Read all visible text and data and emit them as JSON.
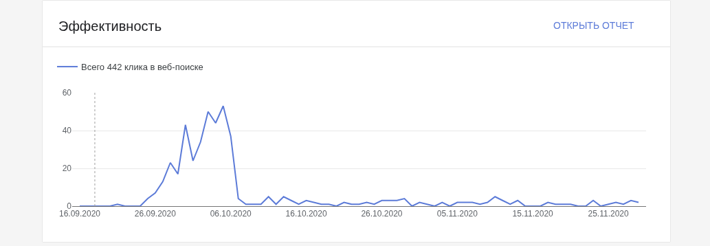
{
  "chart_data": {
    "type": "line",
    "title": "Эффективность",
    "annotations": [
      "ОТКРЫТЬ ОТЧЕТ"
    ],
    "x": [
      "2020-09-16",
      "2020-09-17",
      "2020-09-18",
      "2020-09-19",
      "2020-09-20",
      "2020-09-21",
      "2020-09-22",
      "2020-09-23",
      "2020-09-24",
      "2020-09-25",
      "2020-09-26",
      "2020-09-27",
      "2020-09-28",
      "2020-09-29",
      "2020-09-30",
      "2020-10-01",
      "2020-10-02",
      "2020-10-03",
      "2020-10-04",
      "2020-10-05",
      "2020-10-06",
      "2020-10-07",
      "2020-10-08",
      "2020-10-09",
      "2020-10-10",
      "2020-10-11",
      "2020-10-12",
      "2020-10-13",
      "2020-10-14",
      "2020-10-15",
      "2020-10-16",
      "2020-10-17",
      "2020-10-18",
      "2020-10-19",
      "2020-10-20",
      "2020-10-21",
      "2020-10-22",
      "2020-10-23",
      "2020-10-24",
      "2020-10-25",
      "2020-10-26",
      "2020-10-27",
      "2020-10-28",
      "2020-10-29",
      "2020-10-30",
      "2020-10-31",
      "2020-11-01",
      "2020-11-02",
      "2020-11-03",
      "2020-11-04",
      "2020-11-05",
      "2020-11-06",
      "2020-11-07",
      "2020-11-08",
      "2020-11-09",
      "2020-11-10",
      "2020-11-11",
      "2020-11-12",
      "2020-11-13",
      "2020-11-14",
      "2020-11-15",
      "2020-11-16",
      "2020-11-17",
      "2020-11-18",
      "2020-11-19",
      "2020-11-20",
      "2020-11-21",
      "2020-11-22",
      "2020-11-23",
      "2020-11-24",
      "2020-11-25",
      "2020-11-26",
      "2020-11-27",
      "2020-11-28",
      "2020-11-29"
    ],
    "series": [
      {
        "name": "Всего 442 клика в веб-поиске",
        "color": "#5c7bd8",
        "values": [
          0,
          0,
          0,
          0,
          0,
          1,
          0,
          0,
          0,
          4,
          7,
          13,
          23,
          17,
          43,
          24,
          34,
          50,
          44,
          53,
          37,
          4,
          1,
          1,
          1,
          5,
          1,
          5,
          3,
          1,
          3,
          2,
          1,
          1,
          0,
          2,
          1,
          1,
          2,
          1,
          3,
          3,
          3,
          4,
          0,
          2,
          1,
          0,
          2,
          0,
          2,
          2,
          2,
          1,
          2,
          5,
          3,
          1,
          3,
          0,
          0,
          0,
          2,
          1,
          1,
          1,
          0,
          0,
          3,
          0,
          1,
          2,
          1,
          3,
          2
        ]
      }
    ],
    "xlim": [
      "2020-09-15",
      "2020-11-30"
    ],
    "xticks": [
      {
        "value": "2020-09-16",
        "label": "16.09.2020"
      },
      {
        "value": "2020-09-26",
        "label": "26.09.2020"
      },
      {
        "value": "2020-10-06",
        "label": "06.10.2020"
      },
      {
        "value": "2020-10-16",
        "label": "16.10.2020"
      },
      {
        "value": "2020-10-26",
        "label": "26.10.2020"
      },
      {
        "value": "2020-11-05",
        "label": "05.11.2020"
      },
      {
        "value": "2020-11-15",
        "label": "15.11.2020"
      },
      {
        "value": "2020-11-25",
        "label": "25.11.2020"
      }
    ],
    "ylim": [
      0,
      60
    ],
    "yticks": [
      0,
      20,
      40,
      60
    ],
    "grid": "y",
    "legend": "top left",
    "marker": "none",
    "line_style": "solid",
    "ref_lines": [
      {
        "axis": "x",
        "value": "2020-09-18",
        "color": "#9e9e9e",
        "line_style": "dotted"
      }
    ]
  }
}
